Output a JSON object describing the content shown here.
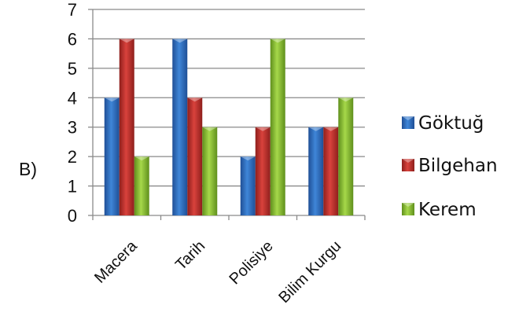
{
  "question_label": "B)",
  "chart_data": {
    "type": "bar",
    "categories": [
      "Macera",
      "Tarih",
      "Polisiye",
      "Bilim Kurgu"
    ],
    "series": [
      {
        "name": "Göktuğ",
        "values": [
          4,
          6,
          2,
          3
        ],
        "color": "#2f6fc0"
      },
      {
        "name": "Bilgehan",
        "values": [
          6,
          4,
          3,
          3
        ],
        "color": "#c0302c"
      },
      {
        "name": "Kerem",
        "values": [
          2,
          3,
          6,
          4
        ],
        "color": "#8cbf2f"
      }
    ],
    "ylim": [
      0,
      7
    ],
    "yticks": [
      "0",
      "1",
      "2",
      "3",
      "4",
      "5",
      "6",
      "7"
    ],
    "grid": true,
    "legend_position": "right",
    "title": "",
    "xlabel": "",
    "ylabel": ""
  }
}
